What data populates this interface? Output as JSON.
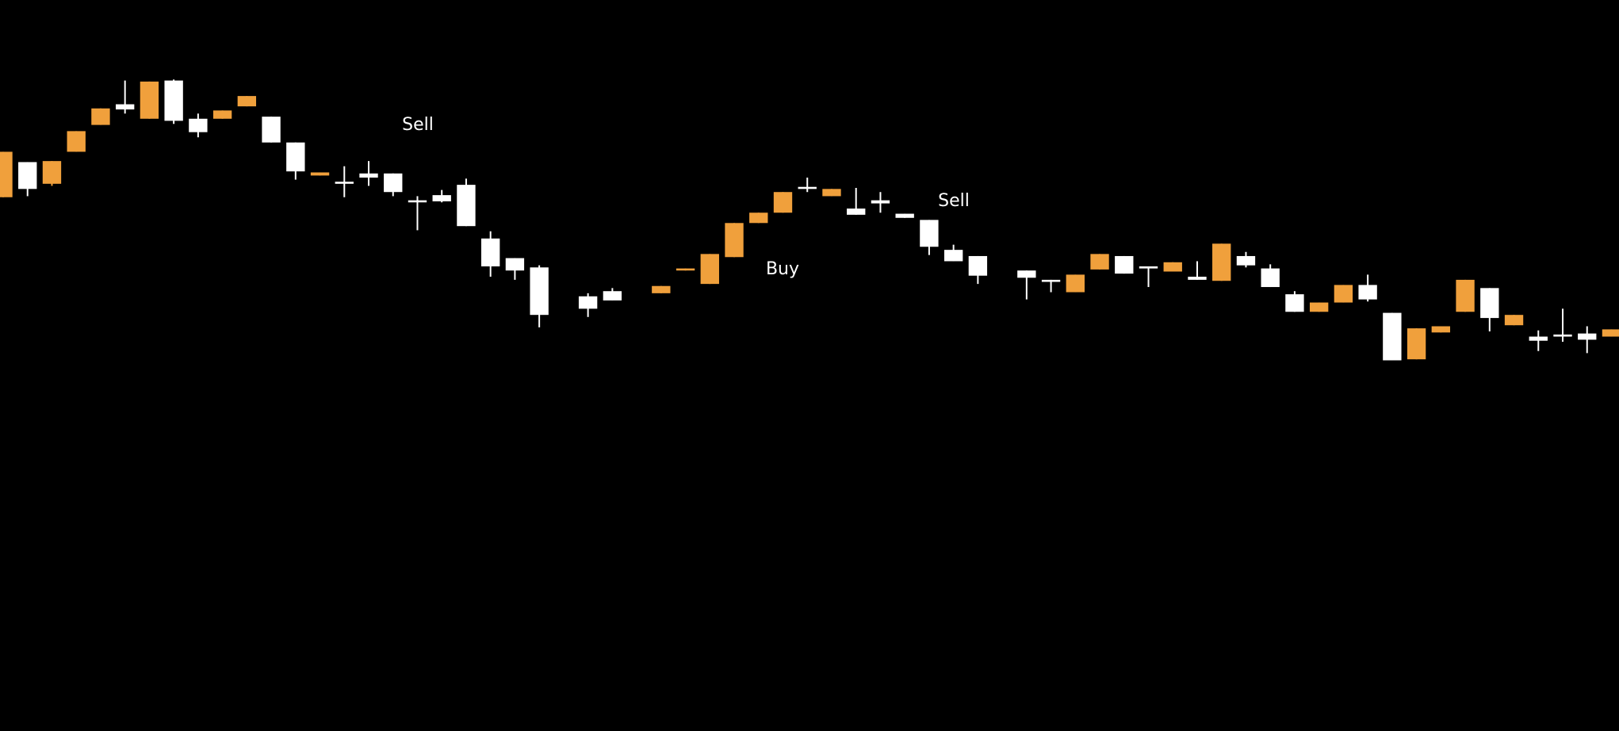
{
  "chart_data": {
    "type": "candlestick",
    "up_color": "#f0a03c",
    "down_color": "#ffffff",
    "xlim": [
      -0.13,
      66.31
    ],
    "ylim": [
      0,
      708
    ],
    "annotations": [
      "Sell",
      "Sell",
      "Buy"
    ],
    "x": [
      0,
      1,
      2,
      3,
      4,
      5,
      6,
      7,
      8,
      9,
      10,
      11,
      12,
      13,
      14,
      15,
      16,
      17,
      18,
      19,
      20,
      21,
      22,
      24,
      25,
      27,
      28,
      29,
      30,
      31,
      32,
      33,
      34,
      35,
      36,
      37,
      38,
      39,
      40,
      42,
      43,
      44,
      45,
      46,
      47,
      48,
      49,
      50,
      51,
      52,
      53,
      54,
      55,
      56,
      57,
      58,
      59,
      60,
      61,
      62,
      63,
      64,
      65,
      66
    ],
    "open": [
      517,
      551,
      530,
      561,
      587,
      607,
      593,
      630,
      593,
      593,
      605,
      595,
      570,
      538,
      532,
      540,
      540,
      514,
      519,
      529,
      477,
      458,
      449,
      421,
      426,
      424,
      446,
      433,
      459,
      492,
      502,
      527,
      518,
      506,
      514,
      501,
      495,
      466,
      460,
      446,
      437,
      425,
      447,
      460,
      450,
      445,
      440,
      436,
      460,
      448,
      423,
      406,
      415,
      432,
      405,
      360,
      386,
      406,
      429,
      393,
      382,
      384,
      385,
      382
    ],
    "high": [
      561,
      551,
      552,
      581,
      603,
      630,
      629,
      631,
      598,
      601,
      615,
      595,
      570,
      541,
      547,
      552,
      540,
      518,
      524,
      535,
      484,
      458,
      451,
      424,
      429,
      431,
      448,
      462,
      492,
      502,
      522,
      536,
      525,
      526,
      522,
      501,
      495,
      471,
      460,
      446,
      437,
      442,
      462,
      460,
      450,
      454,
      455,
      472,
      464,
      452,
      426,
      415,
      432,
      442,
      405,
      390,
      392,
      437,
      429,
      403,
      388,
      409,
      392,
      389
    ],
    "low": [
      517,
      518,
      528,
      561,
      587,
      598,
      593,
      588,
      575,
      593,
      605,
      570,
      534,
      538,
      517,
      528,
      518,
      485,
      512,
      489,
      440,
      437,
      391,
      401,
      417,
      424,
      446,
      433,
      459,
      492,
      502,
      522,
      518,
      500,
      502,
      497,
      461,
      455,
      433,
      418,
      425,
      425,
      447,
      443,
      430,
      445,
      437,
      436,
      449,
      430,
      406,
      406,
      415,
      416,
      359,
      360,
      386,
      406,
      387,
      393,
      368,
      377,
      366,
      382
    ],
    "close": [
      561,
      525,
      552,
      581,
      603,
      602,
      629,
      591,
      580,
      601,
      615,
      570,
      542,
      541,
      530,
      536,
      522,
      512,
      513,
      489,
      450,
      446,
      403,
      409,
      417,
      431,
      448,
      462,
      492,
      502,
      522,
      525,
      525,
      500,
      511,
      497,
      469,
      455,
      441,
      439,
      435,
      442,
      462,
      443,
      448,
      454,
      437,
      472,
      451,
      430,
      406,
      415,
      432,
      418,
      359,
      390,
      392,
      437,
      400,
      403,
      378,
      382,
      379,
      389
    ]
  }
}
